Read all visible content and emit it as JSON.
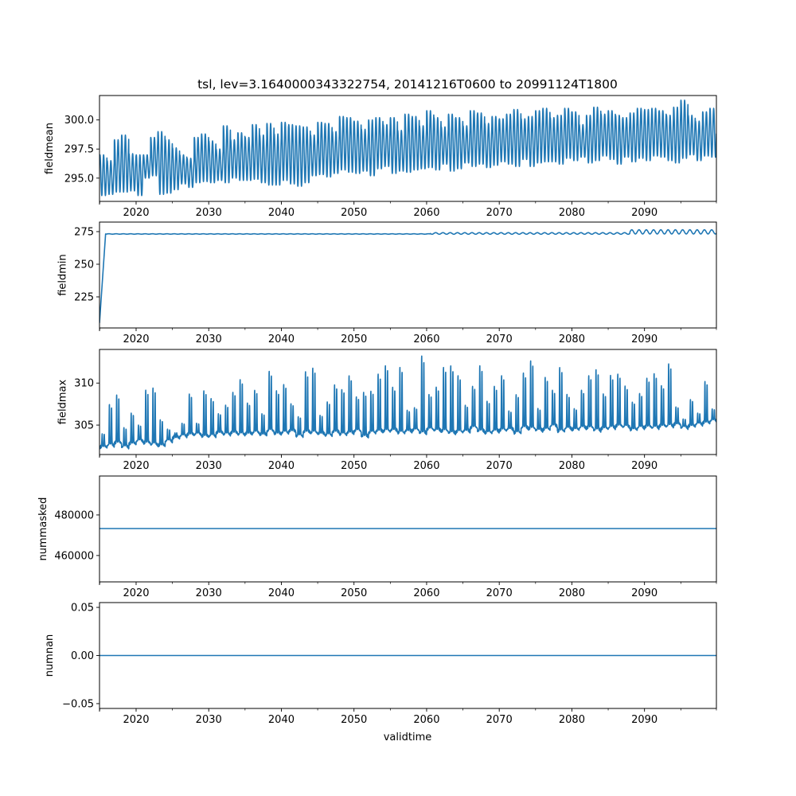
{
  "chart_data": {
    "title": "tsl, lev=3.1640000343322754, 20141216T0600 to 20991124T1800",
    "xlabel": "validtime",
    "xlim": [
      2014.96,
      2099.9
    ],
    "x_ticks": [
      "2020",
      "2030",
      "2040",
      "2050",
      "2060",
      "2070",
      "2080",
      "2090"
    ],
    "x_tick_values": [
      2020,
      2030,
      2040,
      2050,
      2060,
      2070,
      2080,
      2090
    ],
    "x_minor_tick_values": [
      2015,
      2025,
      2035,
      2045,
      2055,
      2065,
      2075,
      2085,
      2095,
      2100
    ],
    "line_color": "#1f77b4",
    "panels": [
      {
        "type": "line",
        "ylabel": "fieldmean",
        "ylim": [
          293.0,
          302.1
        ],
        "y_ticks": [
          "295.0",
          "297.5",
          "300.0"
        ],
        "y_tick_values": [
          295.0,
          297.5,
          300.0
        ],
        "series_kind": "seasonal",
        "start_year": 2015,
        "annual_low": [
          293.5,
          293.6,
          293.8,
          293.8,
          293.9,
          293.5,
          295.0,
          295.2,
          293.6,
          293.7,
          294.0,
          294.5,
          294.2,
          294.6,
          294.7,
          294.6,
          294.8,
          294.6,
          295.0,
          294.8,
          294.8,
          294.9,
          294.6,
          294.4,
          294.4,
          294.8,
          294.5,
          294.3,
          294.6,
          295.2,
          295.3,
          295.1,
          295.4,
          295.7,
          295.5,
          295.4,
          295.6,
          295.2,
          295.8,
          296.0,
          295.4,
          295.6,
          295.5,
          295.7,
          295.8,
          295.9,
          295.7,
          296.2,
          295.6,
          295.8,
          296.3,
          296.0,
          296.2,
          295.9,
          296.1,
          296.4,
          296.2,
          296.0,
          296.6,
          296.0,
          296.3,
          296.4,
          296.4,
          296.2,
          296.7,
          296.5,
          296.8,
          296.3,
          296.5,
          296.9,
          296.6,
          296.2,
          296.8,
          296.4,
          296.7,
          296.5,
          296.9,
          296.8,
          296.5,
          296.3,
          296.7,
          297.0,
          296.5,
          296.9,
          296.8
        ],
        "annual_high": [
          297.0,
          296.5,
          298.3,
          298.7,
          297.1,
          297.0,
          297.0,
          298.5,
          299.0,
          298.3,
          297.6,
          297.0,
          296.7,
          298.5,
          298.8,
          298.2,
          297.5,
          299.5,
          298.3,
          298.9,
          298.5,
          299.6,
          298.7,
          299.7,
          298.8,
          299.8,
          299.6,
          299.5,
          299.4,
          298.7,
          299.8,
          299.7,
          299.0,
          300.3,
          300.2,
          299.9,
          299.2,
          300.0,
          300.2,
          299.6,
          300.2,
          299.1,
          300.5,
          300.3,
          299.5,
          300.8,
          300.2,
          299.4,
          300.5,
          300.2,
          299.5,
          300.8,
          300.6,
          299.7,
          300.3,
          300.1,
          300.5,
          300.9,
          300.1,
          300.3,
          300.8,
          301.0,
          300.2,
          300.4,
          301.0,
          300.7,
          299.6,
          300.4,
          301.1,
          300.5,
          300.8,
          300.4,
          300.2,
          300.6,
          301.0,
          300.9,
          301.0,
          300.8,
          300.4,
          301.1,
          301.7,
          300.4,
          299.9,
          300.7,
          301.0
        ]
      },
      {
        "type": "line",
        "ylabel": "fieldmin",
        "ylim": [
          201.2,
          282.3
        ],
        "y_ticks": [
          "225",
          "250",
          "275"
        ],
        "y_tick_values": [
          225,
          250,
          275
        ],
        "series_kind": "spinup",
        "start_value": 205.0,
        "plateau_value": 273.2,
        "plateau_reached_year": 2015.8,
        "wiggle_start_year": 2060.5,
        "wiggle_amplitude_mid": 0.6,
        "wiggle_growth_year": 2088.0,
        "wiggle_amplitude_late": 1.6,
        "late_offset": 1.6
      },
      {
        "type": "line",
        "ylabel": "fieldmax",
        "ylim": [
          301.5,
          314.0
        ],
        "y_ticks": [
          "305",
          "310"
        ],
        "y_tick_values": [
          305,
          310
        ],
        "series_kind": "peaks",
        "start_year": 2015,
        "annual_base": [
          302.3,
          302.5,
          302.8,
          302.3,
          302.7,
          303.0,
          302.8,
          302.6,
          302.5,
          303.0,
          303.4,
          303.6,
          303.8,
          303.8,
          303.6,
          303.6,
          304.0,
          303.8,
          304.0,
          303.8,
          303.9,
          304.0,
          303.8,
          304.2,
          303.9,
          304.0,
          304.2,
          303.6,
          304.1,
          304.0,
          303.9,
          303.7,
          304.1,
          303.8,
          304.0,
          304.2,
          303.6,
          304.0,
          304.2,
          304.2,
          304.3,
          304.0,
          304.2,
          304.3,
          304.0,
          304.4,
          304.3,
          304.2,
          304.0,
          304.1,
          304.2,
          304.6,
          304.2,
          304.0,
          304.2,
          304.3,
          304.4,
          304.0,
          304.6,
          304.5,
          304.3,
          304.4,
          304.8,
          304.2,
          304.5,
          304.4,
          304.6,
          304.6,
          304.3,
          304.5,
          304.6,
          304.8,
          304.7,
          304.4,
          304.6,
          304.7,
          304.6,
          304.8,
          304.8,
          305.0,
          304.6,
          304.8,
          305.0,
          305.2,
          305.4
        ],
        "annual_peak": [
          303.8,
          307.3,
          308.5,
          304.5,
          306.3,
          304.8,
          309.1,
          309.3,
          305.5,
          304.3,
          303.8,
          305.0,
          308.6,
          305.0,
          309.0,
          308.0,
          306.2,
          307.2,
          308.8,
          310.3,
          307.5,
          309.0,
          306.2,
          311.3,
          309.0,
          309.7,
          307.4,
          305.8,
          311.3,
          311.7,
          306.0,
          307.6,
          309.7,
          309.1,
          310.8,
          308.2,
          308.8,
          308.9,
          311.0,
          312.0,
          309.4,
          311.8,
          306.6,
          306.9,
          313.2,
          308.5,
          309.4,
          311.8,
          312.0,
          310.8,
          307.2,
          309.5,
          312.0,
          307.7,
          309.5,
          310.8,
          306.5,
          308.5,
          311.1,
          312.6,
          306.8,
          310.6,
          309.0,
          311.8,
          308.5,
          306.8,
          309.0,
          310.8,
          311.5,
          308.6,
          310.8,
          311.0,
          309.5,
          307.6,
          308.6,
          310.5,
          311.0,
          309.6,
          312.2,
          307.0,
          305.5,
          307.9,
          306.2,
          310.1,
          306.7
        ]
      },
      {
        "type": "line",
        "ylabel": "nummasked",
        "ylim": [
          447000,
          499200
        ],
        "y_ticks": [
          "460000",
          "480000"
        ],
        "y_tick_values": [
          460000,
          480000
        ],
        "series_kind": "constant",
        "value": 473300
      },
      {
        "type": "line",
        "ylabel": "numnan",
        "ylim": [
          -0.055,
          0.055
        ],
        "y_ticks": [
          "−0.05",
          "0.00",
          "0.05"
        ],
        "y_tick_values": [
          -0.05,
          0.0,
          0.05
        ],
        "series_kind": "constant",
        "value": 0.0
      }
    ]
  }
}
